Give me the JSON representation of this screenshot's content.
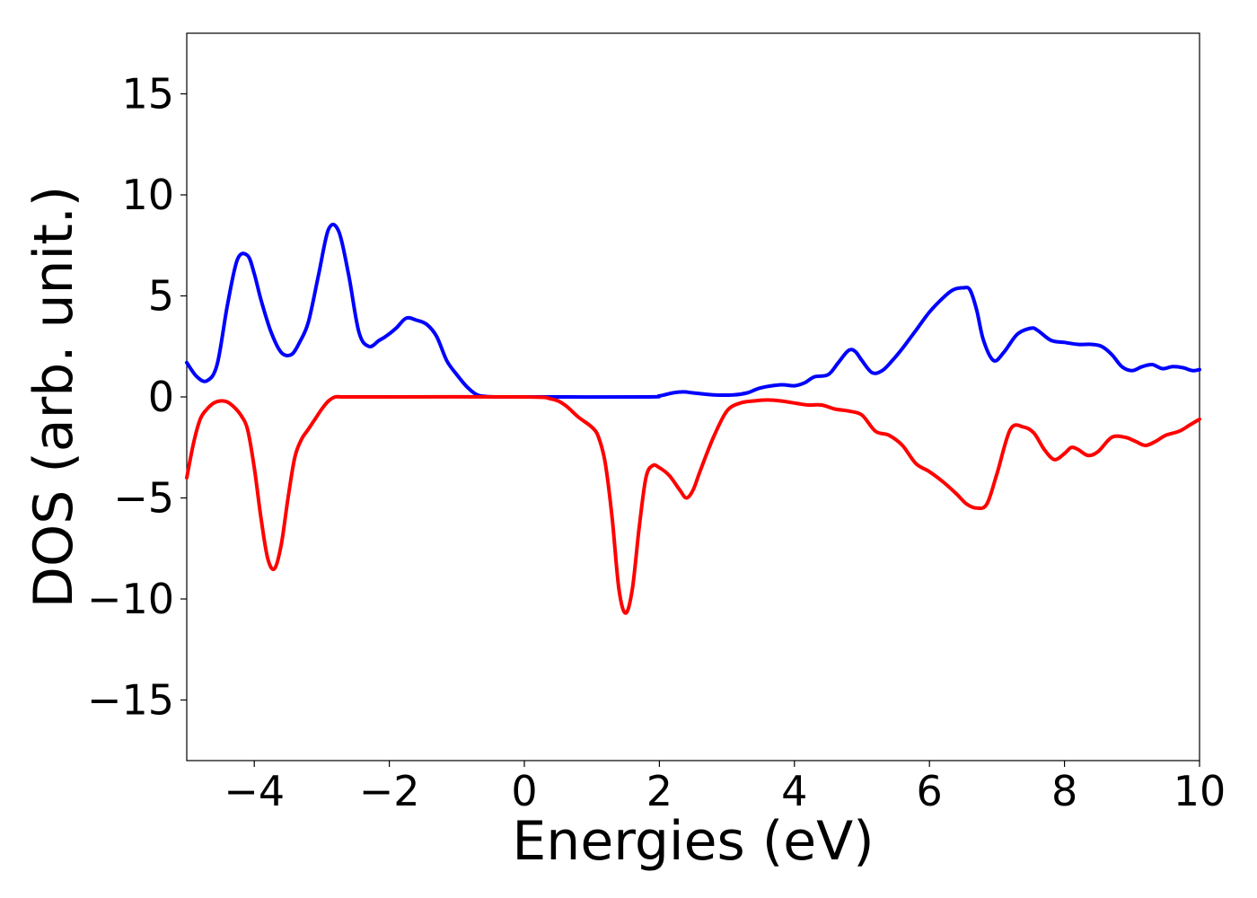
{
  "chart_data": {
    "type": "line",
    "title": "",
    "xlabel": "Energies (eV)",
    "ylabel": "DOS (arb. unit.)",
    "xlim": [
      -5,
      10
    ],
    "ylim": [
      -18,
      18
    ],
    "xticks": [
      -4,
      -2,
      0,
      2,
      4,
      6,
      8,
      10
    ],
    "xtick_labels": [
      "−4",
      "−2",
      "0",
      "2",
      "4",
      "6",
      "8",
      "10"
    ],
    "yticks": [
      -15,
      -10,
      -5,
      0,
      5,
      10,
      15
    ],
    "ytick_labels": [
      "−15",
      "−10",
      "−5",
      "0",
      "5",
      "10",
      "15"
    ],
    "grid": false,
    "legend": "none",
    "series": [
      {
        "color": "#0000ff",
        "x": [
          -5.0,
          -4.85,
          -4.7,
          -4.55,
          -4.4,
          -4.25,
          -4.1,
          -4.0,
          -3.9,
          -3.75,
          -3.6,
          -3.45,
          -3.33,
          -3.2,
          -3.05,
          -2.9,
          -2.75,
          -2.6,
          -2.45,
          -2.3,
          -2.15,
          -2.05,
          -1.9,
          -1.75,
          -1.6,
          -1.45,
          -1.3,
          -1.15,
          -1.0,
          -0.85,
          -0.7,
          -0.55,
          -0.4,
          -0.2,
          0.0,
          1.8,
          2.0,
          2.2,
          2.35,
          2.5,
          2.8,
          3.1,
          3.3,
          3.5,
          3.8,
          4.0,
          4.15,
          4.3,
          4.5,
          4.65,
          4.8,
          4.9,
          5.0,
          5.15,
          5.3,
          5.45,
          5.6,
          5.8,
          6.0,
          6.2,
          6.35,
          6.5,
          6.6,
          6.7,
          6.8,
          6.95,
          7.1,
          7.3,
          7.5,
          7.6,
          7.8,
          8.0,
          8.2,
          8.4,
          8.55,
          8.7,
          8.85,
          9.0,
          9.15,
          9.3,
          9.45,
          9.6,
          9.75,
          9.9,
          10.0
        ],
        "y": [
          1.7,
          1.0,
          0.8,
          1.6,
          4.5,
          6.8,
          7.0,
          6.1,
          4.8,
          3.2,
          2.2,
          2.1,
          2.7,
          3.7,
          6.0,
          8.3,
          8.2,
          6.0,
          3.2,
          2.5,
          2.8,
          3.0,
          3.4,
          3.9,
          3.8,
          3.6,
          3.0,
          1.8,
          1.1,
          0.5,
          0.1,
          0.02,
          0.0,
          0.0,
          0.0,
          0.0,
          0.05,
          0.2,
          0.25,
          0.2,
          0.1,
          0.1,
          0.2,
          0.45,
          0.6,
          0.55,
          0.7,
          1.0,
          1.1,
          1.7,
          2.3,
          2.25,
          1.8,
          1.2,
          1.3,
          1.8,
          2.4,
          3.3,
          4.2,
          4.9,
          5.3,
          5.4,
          5.3,
          4.3,
          2.8,
          1.8,
          2.2,
          3.1,
          3.4,
          3.3,
          2.8,
          2.7,
          2.6,
          2.6,
          2.5,
          2.1,
          1.5,
          1.3,
          1.5,
          1.6,
          1.4,
          1.5,
          1.45,
          1.3,
          1.35
        ]
      },
      {
        "color": "#ff0000",
        "x": [
          -5.0,
          -4.9,
          -4.8,
          -4.7,
          -4.6,
          -4.5,
          -4.4,
          -4.3,
          -4.2,
          -4.1,
          -4.0,
          -3.9,
          -3.8,
          -3.7,
          -3.6,
          -3.5,
          -3.4,
          -3.3,
          -3.2,
          -3.1,
          -3.0,
          -2.9,
          -2.8,
          -2.7,
          -2.6,
          -2.5,
          -2.2,
          0.0,
          0.4,
          0.6,
          0.8,
          1.0,
          1.1,
          1.2,
          1.3,
          1.4,
          1.5,
          1.6,
          1.7,
          1.8,
          1.9,
          2.0,
          2.15,
          2.3,
          2.4,
          2.5,
          2.6,
          2.8,
          3.0,
          3.2,
          3.4,
          3.6,
          3.8,
          4.0,
          4.2,
          4.4,
          4.6,
          4.8,
          5.0,
          5.2,
          5.4,
          5.6,
          5.8,
          6.0,
          6.2,
          6.4,
          6.55,
          6.7,
          6.85,
          7.0,
          7.2,
          7.4,
          7.55,
          7.7,
          7.85,
          8.0,
          8.1,
          8.2,
          8.35,
          8.5,
          8.7,
          8.9,
          9.05,
          9.2,
          9.35,
          9.5,
          9.7,
          9.85,
          10.0
        ],
        "y": [
          -4.0,
          -2.3,
          -1.1,
          -0.6,
          -0.3,
          -0.2,
          -0.25,
          -0.5,
          -0.9,
          -1.6,
          -3.5,
          -6.0,
          -8.0,
          -8.5,
          -7.3,
          -5.0,
          -3.0,
          -2.1,
          -1.6,
          -1.1,
          -0.6,
          -0.2,
          0.0,
          0.0,
          0.0,
          0.0,
          0.0,
          0.0,
          -0.1,
          -0.4,
          -1.0,
          -1.5,
          -2.0,
          -3.3,
          -6.0,
          -9.5,
          -10.7,
          -9.5,
          -6.5,
          -4.0,
          -3.4,
          -3.5,
          -3.9,
          -4.6,
          -5.0,
          -4.6,
          -3.7,
          -2.0,
          -0.7,
          -0.3,
          -0.2,
          -0.15,
          -0.2,
          -0.3,
          -0.4,
          -0.4,
          -0.6,
          -0.7,
          -0.9,
          -1.7,
          -1.9,
          -2.4,
          -3.3,
          -3.7,
          -4.2,
          -4.8,
          -5.3,
          -5.5,
          -5.3,
          -3.8,
          -1.6,
          -1.5,
          -1.8,
          -2.6,
          -3.1,
          -2.8,
          -2.5,
          -2.6,
          -2.9,
          -2.7,
          -2.0,
          -2.0,
          -2.2,
          -2.4,
          -2.2,
          -1.9,
          -1.7,
          -1.4,
          -1.1
        ]
      }
    ]
  }
}
